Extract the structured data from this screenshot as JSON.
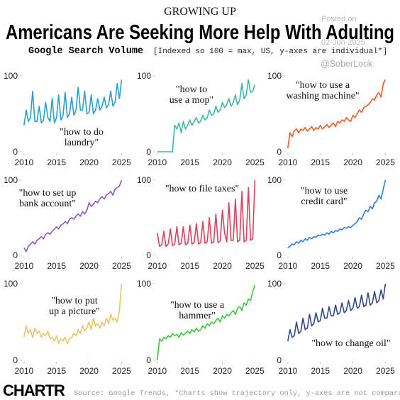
{
  "header": {
    "kicker": "GROWING UP",
    "title": "Americans Are Seeking More Help With Adulting",
    "subtitle": "Google Search Volume",
    "note": "[Indexed so 100 = max, US, y-axes are individual*]"
  },
  "watermark": {
    "posted": "Posted on",
    "date": "02-Jun-2025",
    "handle": "@SoberLook"
  },
  "footer": {
    "logo": "CHARTR",
    "source": "Source: Google Trends, *Charts show trajectory only, y-axes are not comparable"
  },
  "chart_data": [
    {
      "type": "line",
      "label": [
        "\"how to do",
        "laundry\""
      ],
      "color": "#2b9fd0",
      "x": [
        2010,
        2010.33,
        2010.67,
        2011,
        2011.33,
        2011.67,
        2012,
        2012.33,
        2012.67,
        2013,
        2013.33,
        2013.67,
        2014,
        2014.33,
        2014.67,
        2015,
        2015.33,
        2015.67,
        2016,
        2016.33,
        2016.67,
        2017,
        2017.33,
        2017.67,
        2018,
        2018.33,
        2018.67,
        2019,
        2019.33,
        2019.67,
        2020,
        2020.33,
        2020.67,
        2021,
        2021.33,
        2021.67,
        2022,
        2022.33,
        2022.67,
        2023,
        2023.33,
        2023.67,
        2024,
        2024.33,
        2024.67,
        2025
      ],
      "values": [
        35,
        55,
        40,
        45,
        80,
        40,
        40,
        60,
        38,
        42,
        65,
        45,
        40,
        70,
        38,
        45,
        75,
        42,
        48,
        78,
        45,
        50,
        72,
        48,
        55,
        85,
        55,
        55,
        80,
        50,
        52,
        75,
        50,
        55,
        70,
        55,
        60,
        72,
        58,
        62,
        80,
        60,
        65,
        90,
        70,
        95
      ],
      "xlim": [
        2009.8,
        2025.5
      ],
      "ylim": [
        0,
        100
      ],
      "xticks": [
        2010,
        2015,
        2020,
        2025
      ],
      "yticks": [
        0,
        100
      ]
    },
    {
      "type": "line",
      "label": [
        "\"how to",
        "use a mop\""
      ],
      "color": "#3db8a6",
      "x": [
        2010,
        2010.33,
        2010.67,
        2011,
        2011.33,
        2011.67,
        2012,
        2012.33,
        2012.67,
        2013,
        2013.33,
        2013.67,
        2014,
        2014.33,
        2014.67,
        2015,
        2015.33,
        2015.67,
        2016,
        2016.33,
        2016.67,
        2017,
        2017.33,
        2017.67,
        2018,
        2018.33,
        2018.67,
        2019,
        2019.33,
        2019.67,
        2020,
        2020.33,
        2020.67,
        2021,
        2021.33,
        2021.67,
        2022,
        2022.33,
        2022.67,
        2023,
        2023.33,
        2023.67,
        2024,
        2024.33,
        2024.67,
        2025
      ],
      "values": [
        0,
        0,
        0,
        0,
        0,
        0,
        0,
        0,
        35,
        30,
        38,
        25,
        40,
        30,
        35,
        42,
        35,
        40,
        45,
        38,
        40,
        48,
        42,
        45,
        55,
        48,
        50,
        60,
        52,
        55,
        65,
        58,
        62,
        70,
        60,
        65,
        75,
        62,
        68,
        90,
        70,
        75,
        95,
        78,
        80,
        88
      ],
      "xlim": [
        2009.8,
        2025.5
      ],
      "ylim": [
        0,
        100
      ],
      "xticks": [
        2010,
        2015,
        2020,
        2025
      ],
      "yticks": [
        0,
        100
      ]
    },
    {
      "type": "line",
      "label": [
        "\"how to use a",
        "washing machine\""
      ],
      "color": "#f05a28",
      "x": [
        2010,
        2010.33,
        2010.67,
        2011,
        2011.33,
        2011.67,
        2012,
        2012.33,
        2012.67,
        2013,
        2013.33,
        2013.67,
        2014,
        2014.33,
        2014.67,
        2015,
        2015.33,
        2015.67,
        2016,
        2016.33,
        2016.67,
        2017,
        2017.33,
        2017.67,
        2018,
        2018.33,
        2018.67,
        2019,
        2019.33,
        2019.67,
        2020,
        2020.33,
        2020.67,
        2021,
        2021.33,
        2021.67,
        2022,
        2022.33,
        2022.67,
        2023,
        2023.33,
        2023.67,
        2024,
        2024.33,
        2024.67,
        2025
      ],
      "values": [
        5,
        25,
        20,
        28,
        30,
        25,
        30,
        28,
        32,
        27,
        30,
        33,
        28,
        32,
        30,
        35,
        30,
        33,
        36,
        32,
        35,
        38,
        33,
        40,
        38,
        42,
        40,
        45,
        42,
        40,
        48,
        45,
        50,
        55,
        52,
        58,
        60,
        62,
        65,
        70,
        68,
        75,
        78,
        72,
        90,
        95
      ],
      "xlim": [
        2009.8,
        2025.5
      ],
      "ylim": [
        0,
        100
      ],
      "xticks": [
        2010,
        2015,
        2020,
        2025
      ],
      "yticks": [
        0,
        100
      ]
    },
    {
      "type": "line",
      "label": [
        "\"how to set up",
        "bank account\""
      ],
      "color": "#8a5bbf",
      "x": [
        2010,
        2010.33,
        2010.67,
        2011,
        2011.33,
        2011.67,
        2012,
        2012.33,
        2012.67,
        2013,
        2013.33,
        2013.67,
        2014,
        2014.33,
        2014.67,
        2015,
        2015.33,
        2015.67,
        2016,
        2016.33,
        2016.67,
        2017,
        2017.33,
        2017.67,
        2018,
        2018.33,
        2018.67,
        2019,
        2019.33,
        2019.67,
        2020,
        2020.33,
        2020.67,
        2021,
        2021.33,
        2021.67,
        2022,
        2022.33,
        2022.67,
        2023,
        2023.33,
        2023.67,
        2024,
        2024.33,
        2024.67,
        2025
      ],
      "values": [
        10,
        5,
        12,
        15,
        18,
        15,
        20,
        22,
        25,
        22,
        28,
        30,
        28,
        32,
        35,
        38,
        35,
        40,
        42,
        45,
        42,
        48,
        50,
        48,
        52,
        55,
        52,
        58,
        55,
        60,
        70,
        65,
        68,
        72,
        70,
        75,
        78,
        75,
        80,
        82,
        85,
        80,
        88,
        90,
        92,
        100
      ],
      "xlim": [
        2009.8,
        2025.5
      ],
      "ylim": [
        0,
        100
      ],
      "xticks": [
        2010,
        2015,
        2020,
        2025
      ],
      "yticks": [
        0,
        100
      ]
    },
    {
      "type": "line",
      "label": [
        "\"how to file taxes\""
      ],
      "color": "#e0405a",
      "x": [
        2010,
        2010.33,
        2010.67,
        2011,
        2011.33,
        2011.67,
        2012,
        2012.33,
        2012.67,
        2013,
        2013.33,
        2013.67,
        2014,
        2014.33,
        2014.67,
        2015,
        2015.33,
        2015.67,
        2016,
        2016.33,
        2016.67,
        2017,
        2017.33,
        2017.67,
        2018,
        2018.33,
        2018.67,
        2019,
        2019.33,
        2019.67,
        2020,
        2020.33,
        2020.67,
        2021,
        2021.33,
        2021.67,
        2022,
        2022.33,
        2022.67,
        2023,
        2023.33,
        2023.67,
        2024,
        2024.33,
        2024.67,
        2025
      ],
      "values": [
        30,
        12,
        14,
        32,
        12,
        15,
        35,
        13,
        15,
        38,
        14,
        16,
        38,
        14,
        16,
        40,
        15,
        17,
        42,
        15,
        17,
        45,
        16,
        18,
        50,
        16,
        18,
        55,
        17,
        19,
        60,
        30,
        18,
        70,
        20,
        20,
        75,
        18,
        20,
        85,
        18,
        20,
        90,
        20,
        22,
        100
      ],
      "xlim": [
        2009.8,
        2025.5
      ],
      "ylim": [
        0,
        100
      ],
      "xticks": [
        2010,
        2015,
        2020,
        2025
      ],
      "yticks": [
        0,
        100
      ]
    },
    {
      "type": "line",
      "label": [
        "\"how to use",
        "credit card\""
      ],
      "color": "#2a7de0",
      "x": [
        2010,
        2010.33,
        2010.67,
        2011,
        2011.33,
        2011.67,
        2012,
        2012.33,
        2012.67,
        2013,
        2013.33,
        2013.67,
        2014,
        2014.33,
        2014.67,
        2015,
        2015.33,
        2015.67,
        2016,
        2016.33,
        2016.67,
        2017,
        2017.33,
        2017.67,
        2018,
        2018.33,
        2018.67,
        2019,
        2019.33,
        2019.67,
        2020,
        2020.33,
        2020.67,
        2021,
        2021.33,
        2021.67,
        2022,
        2022.33,
        2022.67,
        2023,
        2023.33,
        2023.67,
        2024,
        2024.33,
        2024.67,
        2025
      ],
      "values": [
        10,
        12,
        15,
        14,
        18,
        16,
        20,
        18,
        22,
        20,
        24,
        22,
        25,
        24,
        27,
        26,
        28,
        27,
        30,
        28,
        32,
        30,
        33,
        32,
        35,
        34,
        37,
        36,
        38,
        37,
        40,
        42,
        45,
        50,
        48,
        55,
        60,
        58,
        65,
        62,
        70,
        72,
        80,
        75,
        88,
        100
      ],
      "xlim": [
        2009.8,
        2025.5
      ],
      "ylim": [
        0,
        100
      ],
      "xticks": [
        2010,
        2015,
        2020,
        2025
      ],
      "yticks": [
        0,
        100
      ]
    },
    {
      "type": "line",
      "label": [
        "\"how to put",
        "up a picture\""
      ],
      "color": "#e8c46a",
      "x": [
        2010,
        2010.33,
        2010.67,
        2011,
        2011.33,
        2011.67,
        2012,
        2012.33,
        2012.67,
        2013,
        2013.33,
        2013.67,
        2014,
        2014.33,
        2014.67,
        2015,
        2015.33,
        2015.67,
        2016,
        2016.33,
        2016.67,
        2017,
        2017.33,
        2017.67,
        2018,
        2018.33,
        2018.67,
        2019,
        2019.33,
        2019.67,
        2020,
        2020.33,
        2020.67,
        2021,
        2021.33,
        2021.67,
        2022,
        2022.33,
        2022.67,
        2023,
        2023.33,
        2023.67,
        2024,
        2024.33,
        2024.67,
        2025
      ],
      "values": [
        30,
        45,
        35,
        40,
        30,
        42,
        35,
        38,
        30,
        35,
        32,
        38,
        28,
        30,
        25,
        32,
        22,
        28,
        25,
        30,
        22,
        28,
        30,
        35,
        32,
        40,
        35,
        45,
        38,
        42,
        50,
        40,
        55,
        45,
        48,
        42,
        50,
        45,
        55,
        48,
        60,
        52,
        55,
        50,
        65,
        100
      ],
      "xlim": [
        2009.8,
        2025.5
      ],
      "ylim": [
        0,
        100
      ],
      "xticks": [
        2010,
        2015,
        2020,
        2025
      ],
      "yticks": [
        0,
        100
      ]
    },
    {
      "type": "line",
      "label": [
        "\"how to use a",
        "hammer\""
      ],
      "color": "#3cc83c",
      "x": [
        2010,
        2010.33,
        2010.67,
        2011,
        2011.33,
        2011.67,
        2012,
        2012.33,
        2012.67,
        2013,
        2013.33,
        2013.67,
        2014,
        2014.33,
        2014.67,
        2015,
        2015.33,
        2015.67,
        2016,
        2016.33,
        2016.67,
        2017,
        2017.33,
        2017.67,
        2018,
        2018.33,
        2018.67,
        2019,
        2019.33,
        2019.67,
        2020,
        2020.33,
        2020.67,
        2021,
        2021.33,
        2021.67,
        2022,
        2022.33,
        2022.67,
        2023,
        2023.33,
        2023.67,
        2024,
        2024.33,
        2024.67,
        2025
      ],
      "values": [
        0,
        28,
        25,
        30,
        28,
        32,
        30,
        35,
        32,
        34,
        30,
        36,
        33,
        35,
        38,
        35,
        40,
        37,
        42,
        38,
        40,
        45,
        42,
        48,
        45,
        50,
        48,
        52,
        55,
        50,
        58,
        55,
        60,
        58,
        62,
        65,
        60,
        68,
        70,
        65,
        75,
        72,
        80,
        78,
        90,
        98
      ],
      "xlim": [
        2009.8,
        2025.5
      ],
      "ylim": [
        0,
        100
      ],
      "xticks": [
        2010,
        2015,
        2020,
        2025
      ],
      "yticks": [
        0,
        100
      ]
    },
    {
      "type": "line",
      "label": [
        "\"how to change oil\""
      ],
      "color": "#2c4a8a",
      "x": [
        2010,
        2010.33,
        2010.67,
        2011,
        2011.33,
        2011.67,
        2012,
        2012.33,
        2012.67,
        2013,
        2013.33,
        2013.67,
        2014,
        2014.33,
        2014.67,
        2015,
        2015.33,
        2015.67,
        2016,
        2016.33,
        2016.67,
        2017,
        2017.33,
        2017.67,
        2018,
        2018.33,
        2018.67,
        2019,
        2019.33,
        2019.67,
        2020,
        2020.33,
        2020.67,
        2021,
        2021.33,
        2021.67,
        2022,
        2022.33,
        2022.67,
        2023,
        2023.33,
        2023.67,
        2024,
        2024.33,
        2024.67,
        2025
      ],
      "values": [
        25,
        40,
        30,
        32,
        50,
        35,
        38,
        55,
        40,
        42,
        60,
        45,
        48,
        62,
        50,
        52,
        68,
        55,
        55,
        70,
        58,
        58,
        72,
        60,
        62,
        75,
        62,
        65,
        78,
        65,
        68,
        82,
        68,
        70,
        85,
        70,
        72,
        88,
        72,
        75,
        90,
        75,
        78,
        92,
        80,
        100
      ],
      "xlim": [
        2009.8,
        2025.5
      ],
      "ylim": [
        0,
        100
      ],
      "xticks": [
        2010,
        2015,
        2020,
        2025
      ],
      "yticks": [
        0,
        100
      ]
    }
  ]
}
